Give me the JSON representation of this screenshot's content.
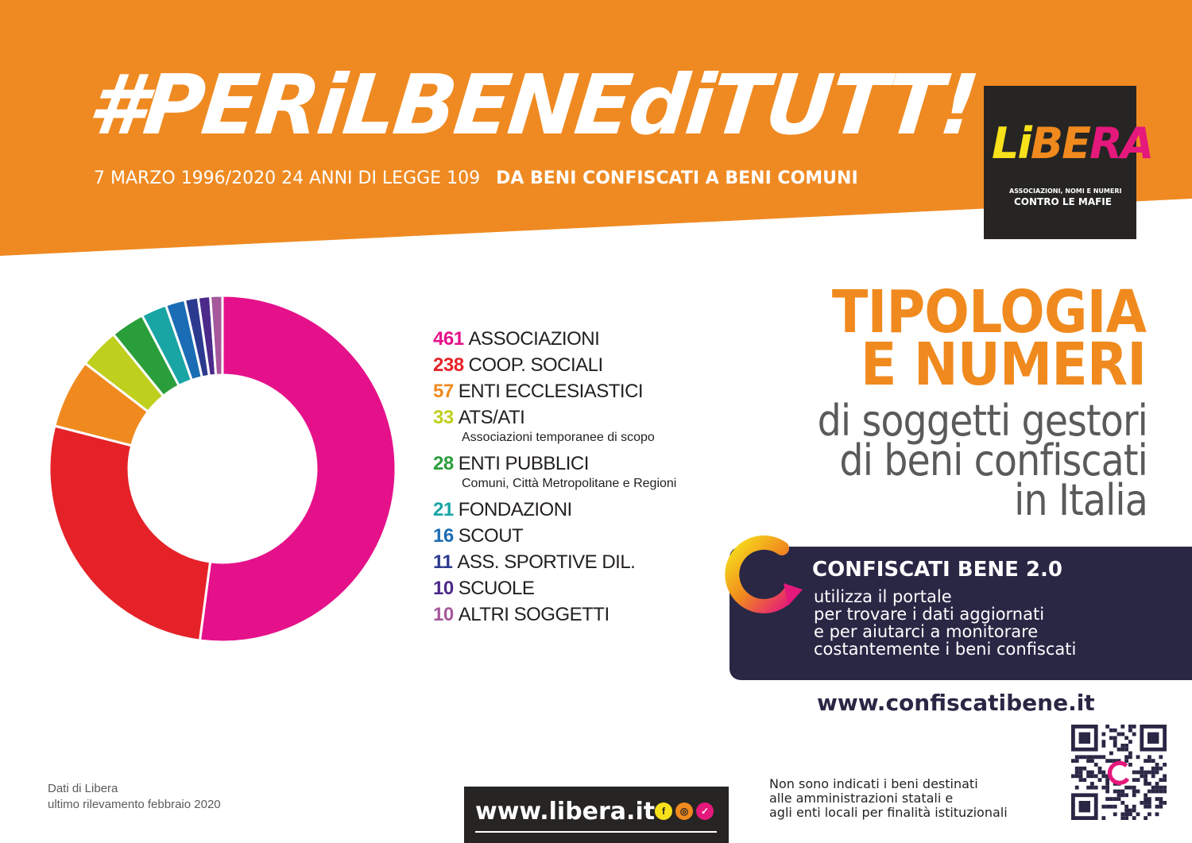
{
  "header": {
    "hashtag": "#PERiLBENEdiTUTT!",
    "subtitle_date": "7 MARZO 1996/2020 24 ANNI DI LEGGE 109",
    "subtitle_bold": "DA BENI CONFISCATI A BENI COMUNI",
    "banner_color": "#ef8a22"
  },
  "logo": {
    "word_part1": "Li",
    "word_part2": "BE",
    "word_part3": "RA",
    "tagline1": "ASSOCIAZIONI, NOMI E NUMERI",
    "tagline2": "CONTRO LE MAFIE"
  },
  "chart_data": {
    "type": "pie",
    "donut": true,
    "categories": [
      "ASSOCIAZIONI",
      "COOP. SOCIALI",
      "ENTI ECCLESIASTICI",
      "ATS/ATI",
      "ENTI PUBBLICI",
      "FONDAZIONI",
      "SCOUT",
      "ASS. SPORTIVE DIL.",
      "SCUOLE",
      "ALTRI SOGGETTI"
    ],
    "values": [
      461,
      238,
      57,
      33,
      28,
      21,
      16,
      11,
      10,
      10
    ],
    "colors": [
      "#e5118a",
      "#e52228",
      "#f08a1e",
      "#bfcf1e",
      "#2a9e3a",
      "#1aa5a5",
      "#1a6db4",
      "#2b3a8f",
      "#4b2a8a",
      "#a5589b"
    ],
    "notes": [
      "",
      "",
      "",
      "Associazioni temporanee di scopo",
      "Comuni, Città Metropolitane e Regioni",
      "",
      "",
      "",
      "",
      ""
    ],
    "legend_position": "right"
  },
  "heading": {
    "line1": "TIPOLOGIA",
    "line2": "E NUMERI",
    "line3": "di soggetti gestori",
    "line4": "di beni confiscati",
    "line5": "in Italia"
  },
  "promo": {
    "title": "CONFISCATI BENE 2.0",
    "line1": "utilizza il portale",
    "line2": "per trovare i dati aggiornati",
    "line3": "e per aiutarci a monitorare",
    "line4": "costantemente i beni confiscati",
    "url": "www.confiscatibene.it"
  },
  "footer": {
    "credit_line1": "Dati di Libera",
    "credit_line2": "ultimo rilevamento febbraio 2020",
    "libera_url": "www.libera.it",
    "footnote_line1": "Non sono indicati i beni destinati",
    "footnote_line2": "alle amministrazioni statali e",
    "footnote_line3": "agli enti locali per finalità istituzionali"
  }
}
